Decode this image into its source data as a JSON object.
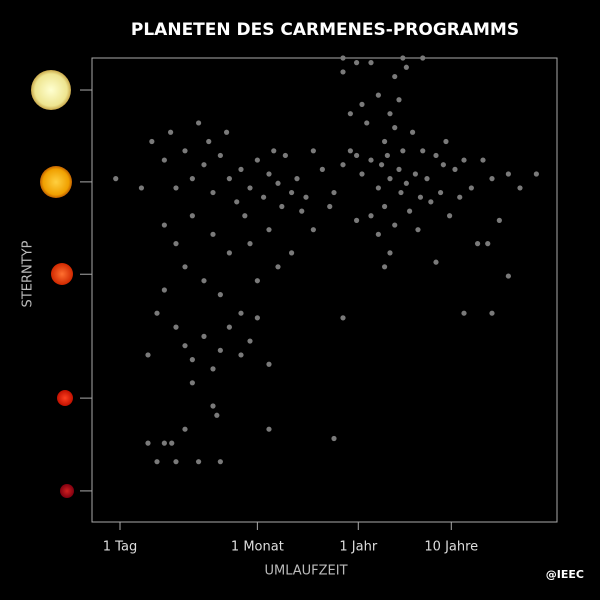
{
  "chart_data": {
    "type": "scatter",
    "title": "PLANETEN DES CARMENES-PROGRAMMS",
    "xlabel": "UMLAUFZEIT",
    "ylabel": "STERNTYP",
    "credit": "@IEEC",
    "xscale": "log",
    "xlim": [
      0.5,
      50000
    ],
    "ylim": [
      0,
      1
    ],
    "color": "#7a7a7a",
    "xticks": [
      {
        "value": 1,
        "label": "1 Tag"
      },
      {
        "value": 30,
        "label": "1 Monat"
      },
      {
        "value": 365,
        "label": "1 Jahr"
      },
      {
        "value": 3650,
        "label": "10 Jahre"
      }
    ],
    "yticks": [
      0.931,
      0.733,
      0.534,
      0.267,
      0.067
    ],
    "x": [
      300,
      400,
      500,
      600,
      800,
      1000,
      1200,
      1500,
      2000,
      700,
      900,
      1100,
      450,
      350,
      250,
      1800,
      2500,
      3000,
      4000,
      5000,
      700,
      500,
      1300,
      2200,
      350,
      600,
      900,
      1600,
      3500,
      6000,
      8000,
      10000,
      15000,
      20000,
      400,
      600,
      800,
      300,
      1000,
      250,
      500,
      1200,
      900,
      200,
      150,
      120,
      180,
      1400,
      2800,
      1700,
      650,
      750,
      1050,
      3200,
      4500,
      7000,
      9000,
      12000,
      800,
      2500,
      3,
      4,
      5,
      6,
      8,
      10,
      12,
      15,
      20,
      25,
      30,
      40,
      50,
      60,
      80,
      3,
      4,
      5,
      6,
      8,
      10,
      12,
      15,
      20,
      25,
      30,
      40,
      50,
      70,
      90,
      2.5,
      3,
      4,
      5,
      6,
      8,
      10,
      12,
      15,
      20,
      25,
      30,
      40,
      2,
      6,
      9,
      14,
      18,
      22,
      35,
      45,
      55,
      70,
      100,
      120,
      2.2,
      3.5,
      7,
      1.7,
      0.9,
      2,
      2.5,
      3,
      3.6,
      4,
      5,
      7,
      10,
      11,
      12,
      40,
      200,
      250,
      350,
      1100,
      1800,
      700,
      250,
      10000,
      15000,
      5000,
      30000
    ],
    "y": [
      0.8,
      0.75,
      0.78,
      0.72,
      0.74,
      0.76,
      0.73,
      0.75,
      0.74,
      0.82,
      0.85,
      0.8,
      0.86,
      0.79,
      0.77,
      0.8,
      0.79,
      0.77,
      0.76,
      0.78,
      0.68,
      0.66,
      0.67,
      0.69,
      0.65,
      0.62,
      0.64,
      0.63,
      0.66,
      0.72,
      0.78,
      0.74,
      0.75,
      0.72,
      0.9,
      0.92,
      0.88,
      0.88,
      0.91,
      0.97,
      0.99,
      0.98,
      0.96,
      0.71,
      0.76,
      0.8,
      0.68,
      0.84,
      0.71,
      0.7,
      0.77,
      0.79,
      0.71,
      0.82,
      0.7,
      0.6,
      0.6,
      0.65,
      0.58,
      0.56,
      0.78,
      0.72,
      0.8,
      0.74,
      0.77,
      0.71,
      0.79,
      0.74,
      0.76,
      0.72,
      0.78,
      0.75,
      0.73,
      0.79,
      0.74,
      0.64,
      0.6,
      0.55,
      0.66,
      0.52,
      0.62,
      0.49,
      0.58,
      0.45,
      0.6,
      0.52,
      0.63,
      0.55,
      0.58,
      0.67,
      0.45,
      0.5,
      0.42,
      0.38,
      0.35,
      0.4,
      0.33,
      0.37,
      0.42,
      0.36,
      0.39,
      0.44,
      0.34,
      0.36,
      0.3,
      0.82,
      0.84,
      0.69,
      0.66,
      0.7,
      0.8,
      0.68,
      0.71,
      0.7,
      0.63,
      0.82,
      0.84,
      0.86,
      0.72,
      0.74,
      0.17,
      0.13,
      0.17,
      0.17,
      0.13,
      0.2,
      0.13,
      0.25,
      0.23,
      0.13,
      0.2,
      0.18,
      1.0,
      0.99,
      1.0,
      1.0,
      0.55,
      0.44,
      0.45,
      0.53,
      0.45,
      0.75
    ]
  }
}
